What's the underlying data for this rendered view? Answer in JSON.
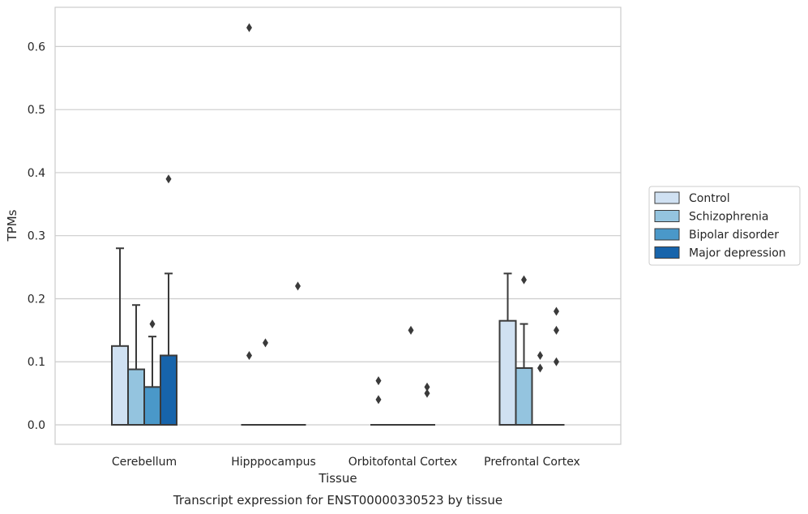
{
  "chart_data": {
    "type": "boxplot",
    "xlabel": "Tissue",
    "ylabel": "TPMs",
    "caption": "Transcript expression for ENST00000330523 by tissue",
    "ylim": [
      -0.03,
      0.66
    ],
    "yticks": [
      0.0,
      0.1,
      0.2,
      0.3,
      0.4,
      0.5,
      0.6
    ],
    "ytick_labels": [
      "0.0",
      "0.1",
      "0.2",
      "0.3",
      "0.4",
      "0.5",
      "0.6"
    ],
    "grid": "horizontal",
    "legend_position": "right",
    "categories": [
      "Cerebellum",
      "Hipppocampus",
      "Orbitofontal Cortex",
      "Prefrontal Cortex"
    ],
    "series": [
      {
        "name": "Control",
        "color": "#d0e1f2",
        "boxes": [
          {
            "q1": 0.0,
            "median": 0.0,
            "q3": 0.125,
            "whisker_low": 0.0,
            "whisker_high": 0.28,
            "outliers": []
          },
          {
            "q1": 0.0,
            "median": 0.0,
            "q3": 0.0,
            "whisker_low": 0.0,
            "whisker_high": 0.0,
            "outliers": [
              0.11,
              0.63
            ]
          },
          {
            "q1": 0.0,
            "median": 0.0,
            "q3": 0.0,
            "whisker_low": 0.0,
            "whisker_high": 0.0,
            "outliers": [
              0.04,
              0.07
            ]
          },
          {
            "q1": 0.0,
            "median": 0.0,
            "q3": 0.165,
            "whisker_low": 0.0,
            "whisker_high": 0.24,
            "outliers": []
          }
        ]
      },
      {
        "name": "Schizophrenia",
        "color": "#94c4df",
        "boxes": [
          {
            "q1": 0.0,
            "median": 0.0,
            "q3": 0.088,
            "whisker_low": 0.0,
            "whisker_high": 0.19,
            "outliers": []
          },
          {
            "q1": 0.0,
            "median": 0.0,
            "q3": 0.0,
            "whisker_low": 0.0,
            "whisker_high": 0.0,
            "outliers": [
              0.13
            ]
          },
          {
            "q1": 0.0,
            "median": 0.0,
            "q3": 0.0,
            "whisker_low": 0.0,
            "whisker_high": 0.0,
            "outliers": []
          },
          {
            "q1": 0.0,
            "median": 0.0,
            "q3": 0.09,
            "whisker_low": 0.0,
            "whisker_high": 0.16,
            "outliers": [
              0.23
            ]
          }
        ]
      },
      {
        "name": "Bipolar disorder",
        "color": "#4a98c9",
        "boxes": [
          {
            "q1": 0.0,
            "median": 0.0,
            "q3": 0.06,
            "whisker_low": 0.0,
            "whisker_high": 0.14,
            "outliers": [
              0.16
            ]
          },
          {
            "q1": 0.0,
            "median": 0.0,
            "q3": 0.0,
            "whisker_low": 0.0,
            "whisker_high": 0.0,
            "outliers": []
          },
          {
            "q1": 0.0,
            "median": 0.0,
            "q3": 0.0,
            "whisker_low": 0.0,
            "whisker_high": 0.0,
            "outliers": [
              0.15
            ]
          },
          {
            "q1": 0.0,
            "median": 0.0,
            "q3": 0.0,
            "whisker_low": 0.0,
            "whisker_high": 0.0,
            "outliers": [
              0.09,
              0.11
            ]
          }
        ]
      },
      {
        "name": "Major depression",
        "color": "#1764ab",
        "boxes": [
          {
            "q1": 0.0,
            "median": 0.0,
            "q3": 0.11,
            "whisker_low": 0.0,
            "whisker_high": 0.24,
            "outliers": [
              0.39
            ]
          },
          {
            "q1": 0.0,
            "median": 0.0,
            "q3": 0.0,
            "whisker_low": 0.0,
            "whisker_high": 0.0,
            "outliers": [
              0.22
            ]
          },
          {
            "q1": 0.0,
            "median": 0.0,
            "q3": 0.0,
            "whisker_low": 0.0,
            "whisker_high": 0.0,
            "outliers": [
              0.05,
              0.06
            ]
          },
          {
            "q1": 0.0,
            "median": 0.0,
            "q3": 0.0,
            "whisker_low": 0.0,
            "whisker_high": 0.0,
            "outliers": [
              0.1,
              0.15,
              0.18
            ]
          }
        ]
      }
    ],
    "style": {
      "line_color": "#3a3a3a",
      "grid_color": "#cccccc",
      "frame_color": "#cccccc",
      "outlier_color": "#3a3a3a"
    }
  }
}
